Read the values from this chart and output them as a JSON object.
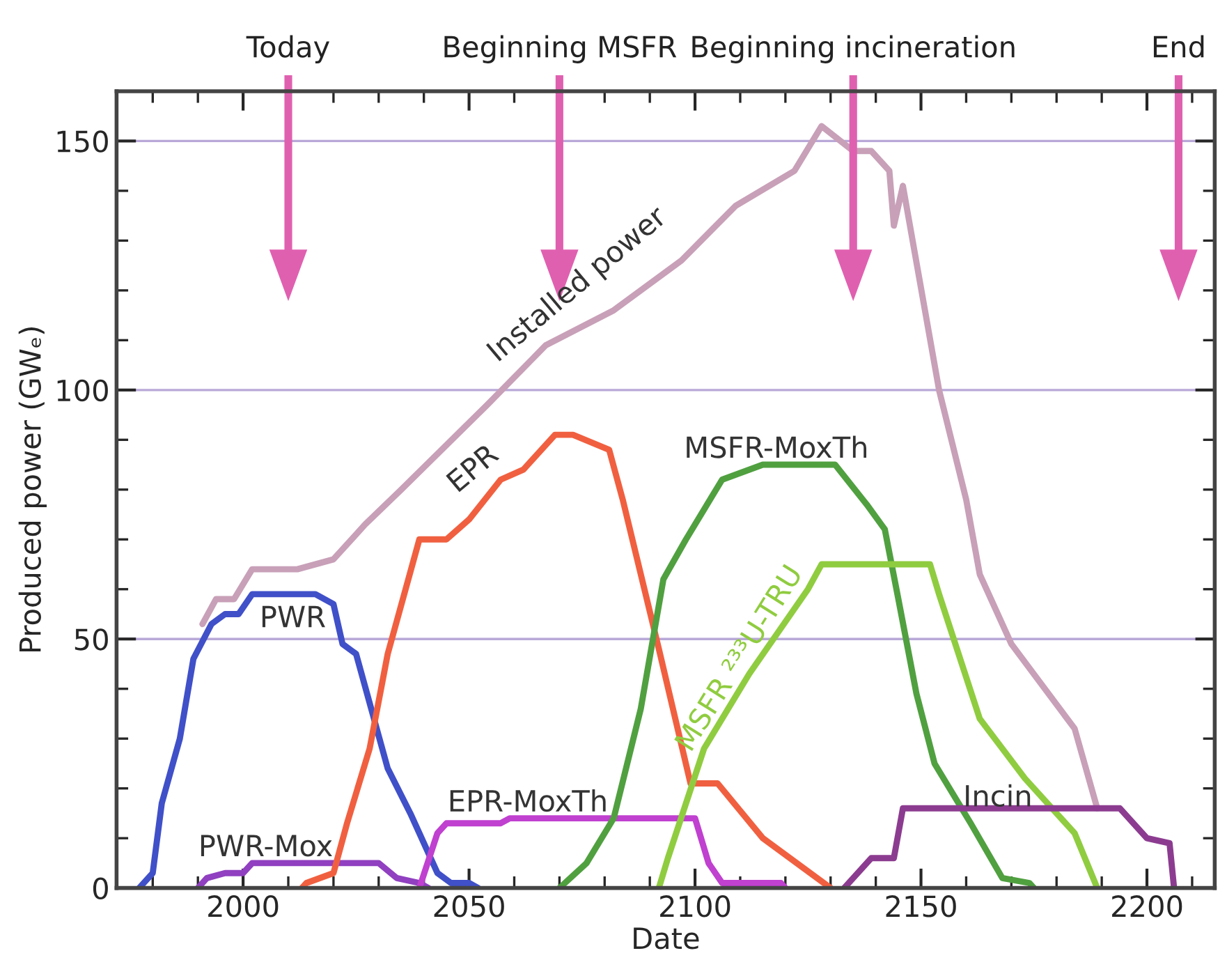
{
  "chart_data": {
    "type": "line",
    "xlabel": "Date",
    "ylabel": "Produced power (GWₑ)",
    "xlim": [
      1972,
      2215
    ],
    "ylim": [
      0,
      160
    ],
    "xticks": [
      {
        "value": 1980,
        "label": null
      },
      {
        "value": 1990,
        "label": null
      },
      2000,
      {
        "value": 2010,
        "label": null
      },
      {
        "value": 2020,
        "label": null
      },
      {
        "value": 2030,
        "label": null
      },
      {
        "value": 2040,
        "label": null
      },
      2050,
      {
        "value": 2060,
        "label": null
      },
      {
        "value": 2070,
        "label": null
      },
      {
        "value": 2080,
        "label": null
      },
      {
        "value": 2090,
        "label": null
      },
      2100,
      {
        "value": 2110,
        "label": null
      },
      {
        "value": 2120,
        "label": null
      },
      {
        "value": 2130,
        "label": null
      },
      {
        "value": 2140,
        "label": null
      },
      2150,
      {
        "value": 2160,
        "label": null
      },
      {
        "value": 2170,
        "label": null
      },
      {
        "value": 2180,
        "label": null
      },
      {
        "value": 2190,
        "label": null
      },
      2200,
      {
        "value": 2210,
        "label": null
      }
    ],
    "yticks": [
      0,
      {
        "value": 10,
        "label": null
      },
      {
        "value": 20,
        "label": null
      },
      {
        "value": 30,
        "label": null
      },
      {
        "value": 40,
        "label": null
      },
      50,
      {
        "value": 60,
        "label": null
      },
      {
        "value": 70,
        "label": null
      },
      {
        "value": 80,
        "label": null
      },
      {
        "value": 90,
        "label": null
      },
      100,
      {
        "value": 110,
        "label": null
      },
      {
        "value": 120,
        "label": null
      },
      {
        "value": 130,
        "label": null
      },
      {
        "value": 140,
        "label": null
      },
      150
    ],
    "grid": "y",
    "legend": false,
    "line_style": "solid",
    "marker": "none",
    "series": [
      {
        "name": "PWR",
        "color": "#4050c8",
        "x": [
          1977,
          1980,
          1982,
          1986,
          1989,
          1993,
          1996,
          1999,
          2002,
          2016,
          2020,
          2022,
          2025,
          2032,
          2037,
          2043,
          2046,
          2050,
          2052
        ],
        "values": [
          0,
          3,
          17,
          30,
          46,
          53,
          55,
          55,
          59,
          59,
          57,
          49,
          47,
          24,
          15,
          3,
          1,
          1,
          0
        ]
      },
      {
        "name": "PWR-Mox",
        "color": "#9040c0",
        "x": [
          1990,
          1992,
          1996,
          2000,
          2002,
          2030,
          2034,
          2039,
          2041
        ],
        "values": [
          0,
          2,
          3,
          3,
          5,
          5,
          2,
          1,
          0
        ]
      },
      {
        "name": "Installed power",
        "color": "#c8a0b8",
        "x": [
          1991,
          1994,
          1998,
          2002,
          2012,
          2020,
          2027,
          2035,
          2054,
          2067,
          2082,
          2097,
          2109,
          2122,
          2128,
          2135,
          2139,
          2143,
          2144,
          2146,
          2154,
          2160,
          2163,
          2170,
          2184,
          2189
        ],
        "values": [
          53,
          58,
          58,
          64,
          64,
          66,
          73,
          80,
          97,
          109,
          116,
          126,
          137,
          144,
          153,
          148,
          148,
          144,
          133,
          141,
          100,
          78,
          63,
          49,
          32,
          16
        ]
      },
      {
        "name": "EPR",
        "color": "#f06040",
        "x": [
          2013,
          2014,
          2020,
          2023,
          2028,
          2032,
          2039,
          2045,
          2050,
          2057,
          2062,
          2069,
          2073,
          2081,
          2084,
          2092,
          2099,
          2105,
          2115,
          2130
        ],
        "values": [
          0,
          1,
          3,
          13,
          28,
          47,
          70,
          70,
          74,
          82,
          84,
          91,
          91,
          88,
          78,
          48,
          21,
          21,
          10,
          0
        ]
      },
      {
        "name": "EPR-MoxTh",
        "color": "#c040d0",
        "x": [
          2039,
          2043,
          2045,
          2057,
          2059,
          2100,
          2103,
          2106,
          2119,
          2120
        ],
        "values": [
          0,
          11,
          13,
          13,
          14,
          14,
          5,
          1,
          1,
          0
        ]
      },
      {
        "name": "MSFR-MoxTh",
        "color": "#50a040",
        "x": [
          2070,
          2076,
          2082,
          2088,
          2093,
          2098,
          2106,
          2115,
          2131,
          2138,
          2142,
          2145,
          2149,
          2153,
          2161,
          2168,
          2174,
          2175
        ],
        "values": [
          0,
          5,
          14,
          36,
          62,
          70,
          82,
          85,
          85,
          77,
          72,
          58,
          39,
          25,
          13,
          2,
          1,
          0
        ]
      },
      {
        "name": "MSFR ²³³U-TRU",
        "color": "#90cc40",
        "x": [
          2092,
          2094,
          2102,
          2112,
          2125,
          2128,
          2152,
          2154,
          2163,
          2173,
          2184,
          2189
        ],
        "values": [
          0,
          6,
          28,
          43,
          60,
          65,
          65,
          59,
          34,
          22,
          11,
          0
        ]
      },
      {
        "name": "Incin",
        "color": "#8c3c90",
        "x": [
          2133,
          2139,
          2144,
          2146,
          2194,
          2200,
          2205,
          2206
        ],
        "values": [
          0,
          6,
          6,
          16,
          16,
          10,
          9,
          0
        ]
      }
    ],
    "ref_lines": [
      {
        "axis": "x",
        "value": 2010,
        "label": "Today",
        "color": "#e060b0"
      },
      {
        "axis": "x",
        "value": 2070,
        "label": "Beginning MSFR",
        "color": "#e060b0"
      },
      {
        "axis": "x",
        "value": 2135,
        "label": "Beginning incineration",
        "color": "#e060b0"
      },
      {
        "axis": "x",
        "value": 2207,
        "label": "End",
        "color": "#e060b0"
      }
    ]
  }
}
